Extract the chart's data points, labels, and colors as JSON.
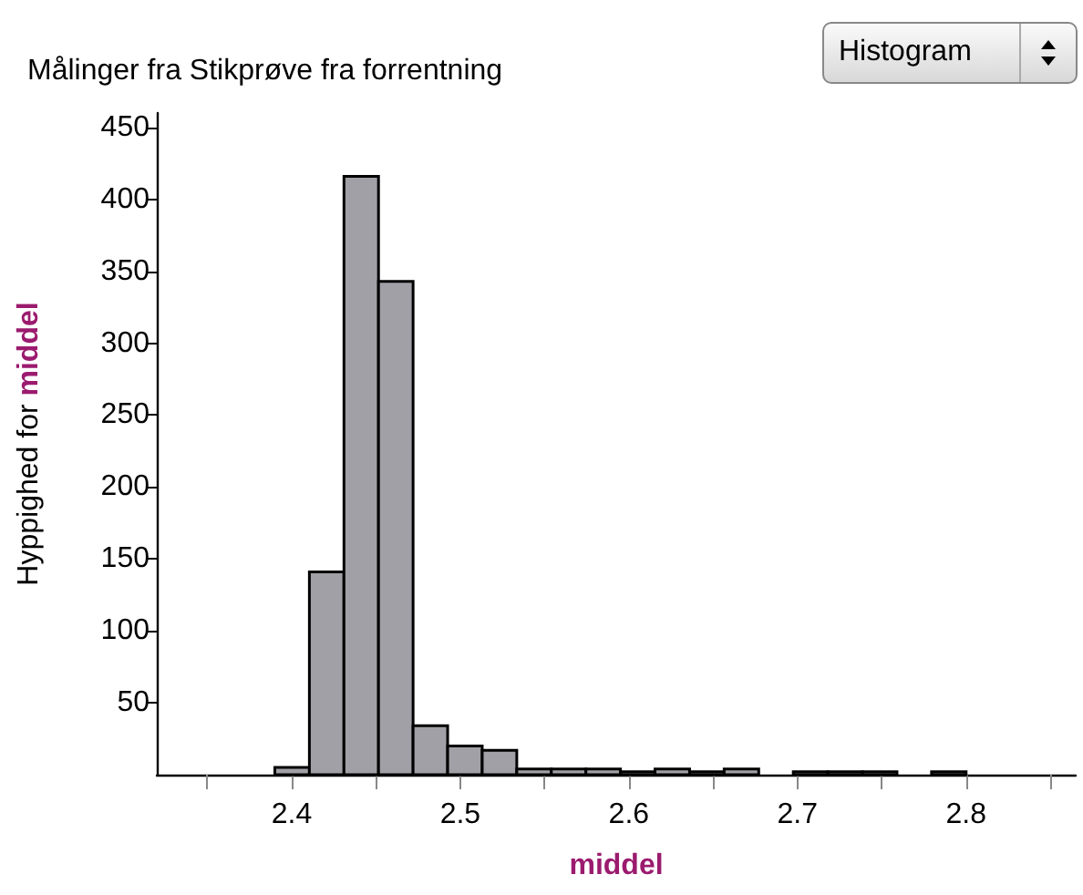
{
  "chart_data": {
    "type": "histogram",
    "title": "Målinger fra Stikprøve fra forrentning",
    "xlabel": "middel",
    "ylabel": "Hyppighed for middel",
    "annotations": [
      "Histogram"
    ],
    "bins": [
      2.39,
      2.4105,
      2.431,
      2.4515,
      2.472,
      2.4925,
      2.513,
      2.5335,
      2.554,
      2.5745,
      2.595,
      2.6155,
      2.636,
      2.6565,
      2.677,
      2.6975,
      2.718,
      2.7385,
      2.759,
      2.7795,
      2.8
    ],
    "values": [
      5,
      141,
      416,
      343,
      34,
      20,
      17,
      4,
      4,
      4,
      2,
      4,
      2,
      4,
      0,
      2,
      2,
      2,
      0,
      2
    ],
    "color": "#a0a0a6",
    "xlim": [
      2.32,
      2.865
    ],
    "xticks": [
      {
        "value": 2.35,
        "label": null
      },
      2.4,
      {
        "value": 2.45,
        "label": null
      },
      2.5,
      {
        "value": 2.55,
        "label": null
      },
      2.6,
      {
        "value": 2.65,
        "label": null
      },
      2.7,
      {
        "value": 2.75,
        "label": null
      },
      2.8,
      {
        "value": 2.85,
        "label": null
      }
    ],
    "ylim": [
      0,
      460
    ],
    "yticks": [
      50,
      100,
      150,
      200,
      250,
      300,
      350,
      400,
      450
    ],
    "grid": false
  }
}
